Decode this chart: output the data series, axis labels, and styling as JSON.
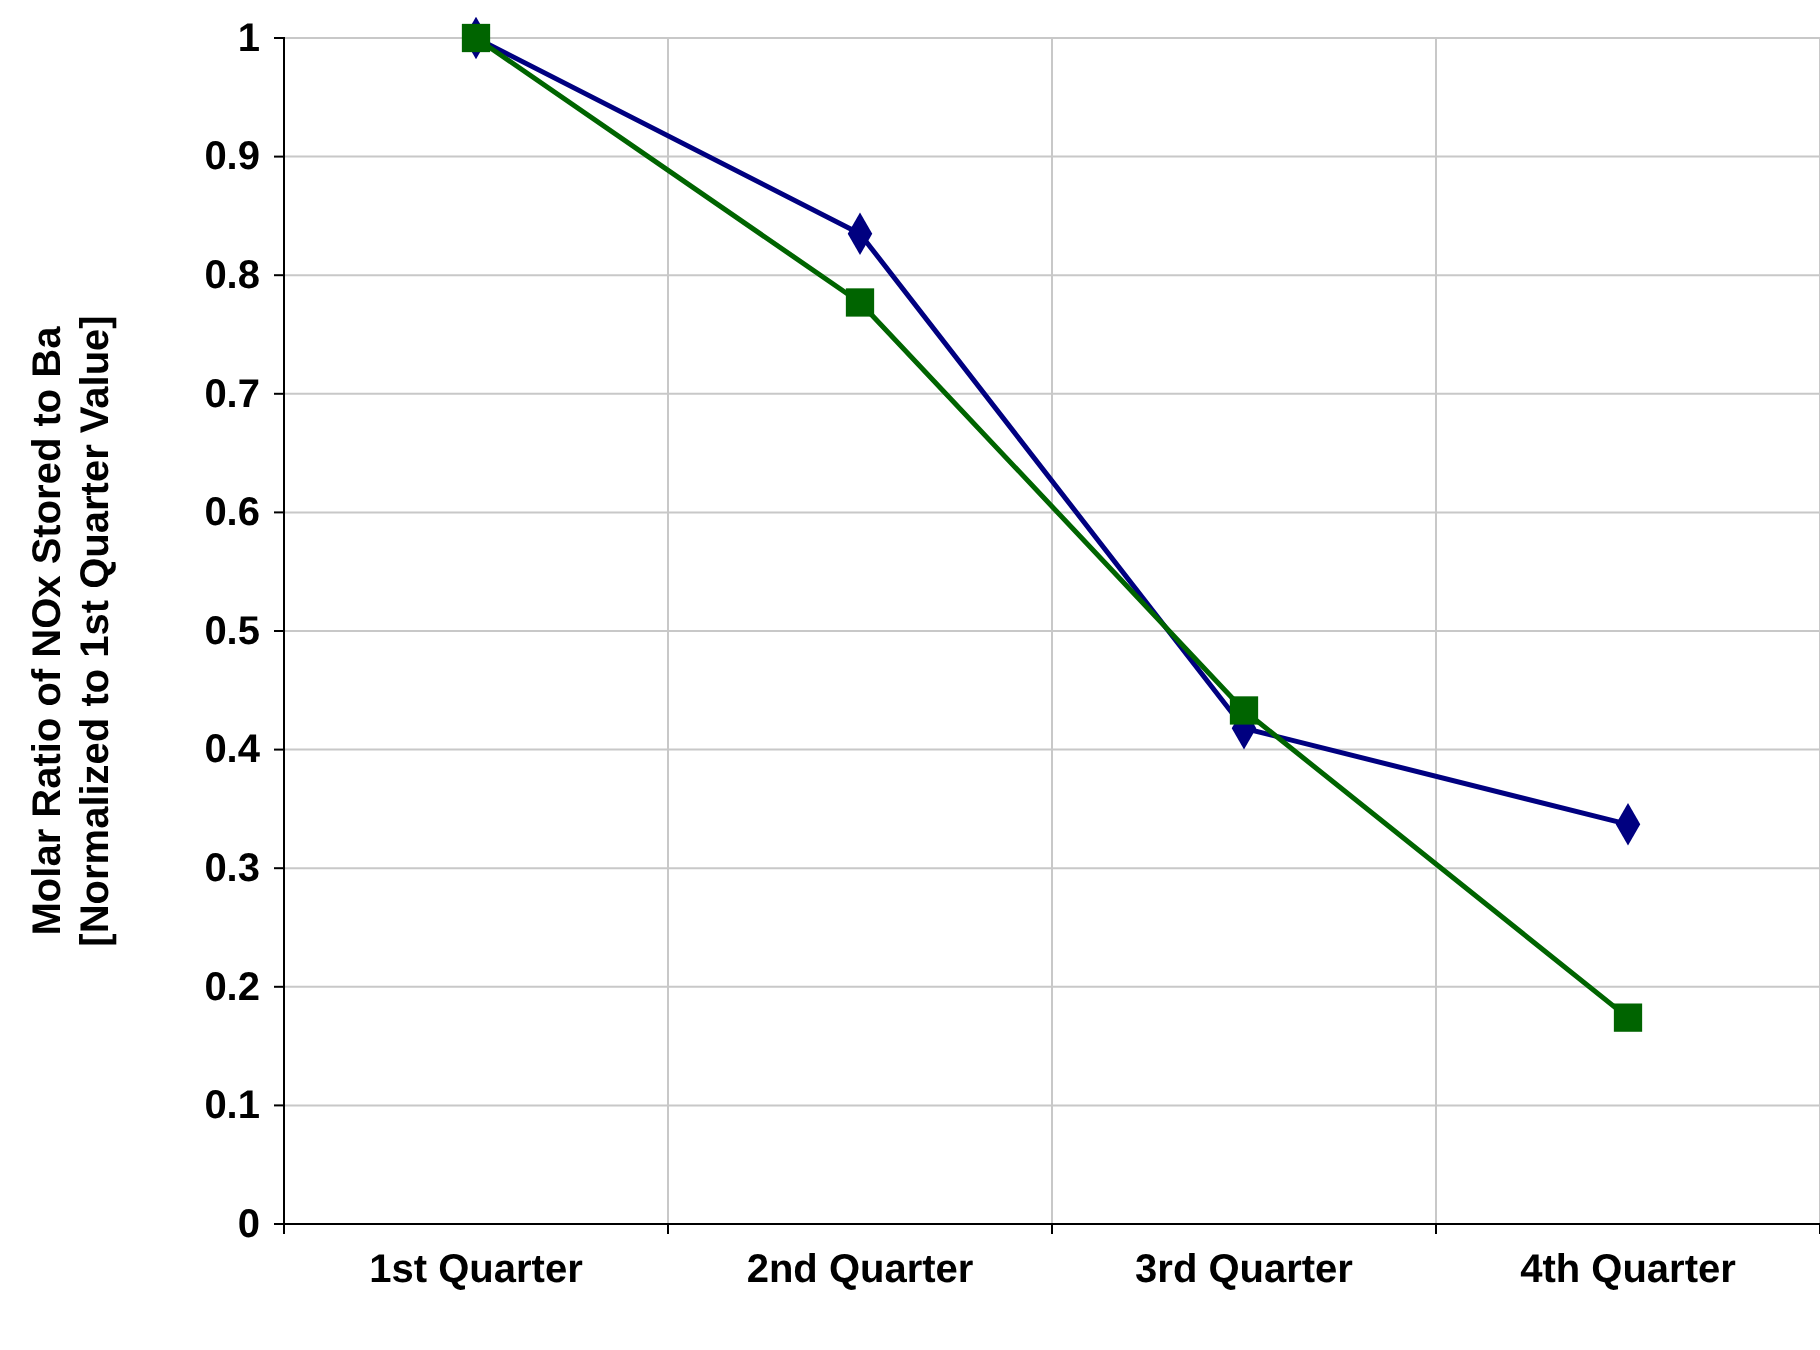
{
  "chart_data": {
    "type": "line",
    "ylabel": "Molar Ratio of NOx Stored to Ba\n[Normalized to 1st Quarter Value]",
    "categories": [
      "1st Quarter",
      "2nd Quarter",
      "3rd Quarter",
      "4th Quarter"
    ],
    "series": [
      {
        "color": "#000080",
        "marker": "diamond",
        "values": [
          1,
          0.835,
          0.418,
          0.337
        ]
      },
      {
        "color": "#006400",
        "marker": "square",
        "values": [
          1,
          0.777,
          0.433,
          0.174
        ]
      }
    ],
    "ylim": [
      0,
      1
    ],
    "yticks": [
      0,
      0.1,
      0.2,
      0.3,
      0.4,
      0.5,
      0.6,
      0.7,
      0.8,
      0.9,
      1
    ],
    "grid": true
  }
}
